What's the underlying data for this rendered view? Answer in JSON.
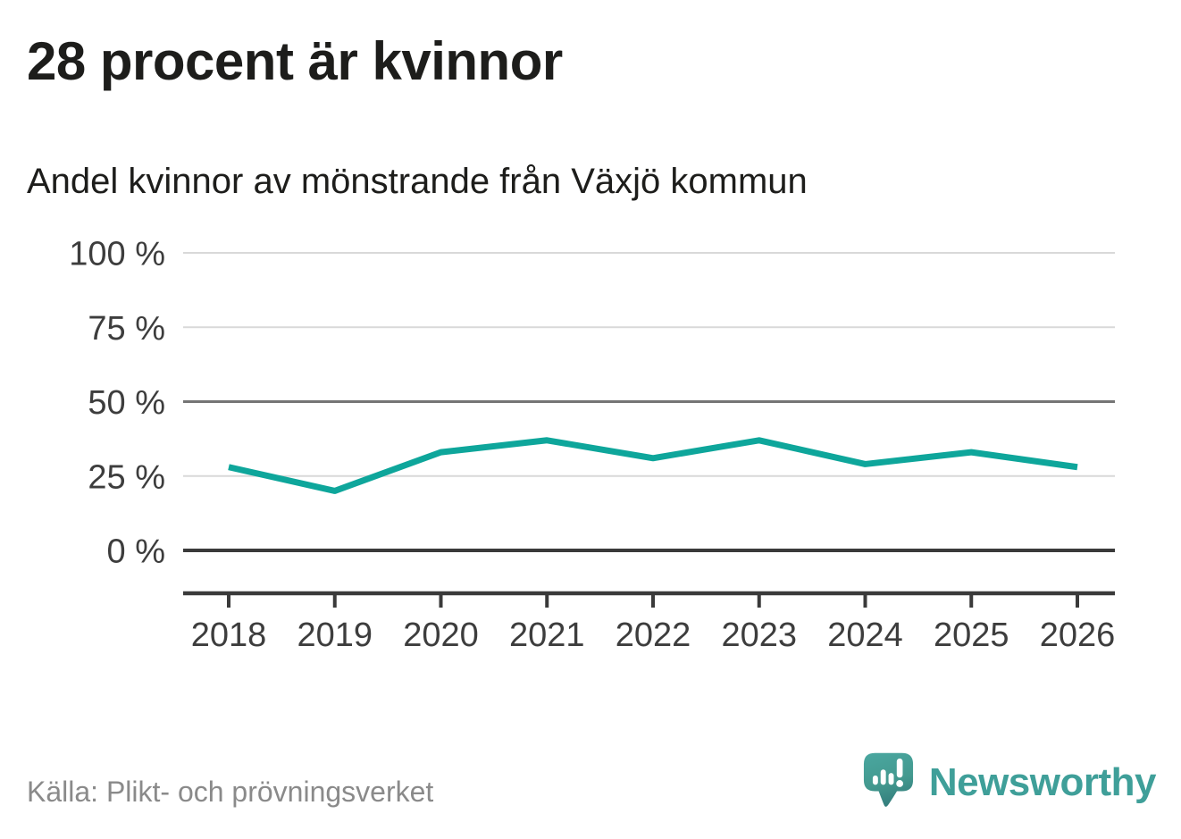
{
  "header": {
    "title": "28 procent är kvinnor",
    "subtitle": "Andel kvinnor av mönstrande från Växjö kommun"
  },
  "footer": {
    "source": "Källa: Plikt- och prövningsverket",
    "brand_name": "Newsworthy"
  },
  "colors": {
    "line": "#0ea69b",
    "grid_light": "#d9d9d9",
    "grid_mid": "#757575",
    "axis_dark": "#3a3a3a",
    "tick_text": "#3d3d3d",
    "title_text": "#1d1d1b",
    "source_text": "#8a8a8a",
    "brand_teal": "#3f9f99",
    "background": "#ffffff"
  },
  "chart_data": {
    "type": "line",
    "title": "28 procent är kvinnor",
    "subtitle": "Andel kvinnor av mönstrande från Växjö kommun",
    "x": [
      "2018",
      "2019",
      "2020",
      "2021",
      "2022",
      "2023",
      "2024",
      "2025",
      "2026"
    ],
    "series": [
      {
        "name": "Andel kvinnor av mönstrande",
        "color": "#0ea69b",
        "values": [
          28,
          20,
          33,
          37,
          31,
          37,
          29,
          33,
          28
        ]
      }
    ],
    "unit": "%",
    "ylim": [
      0,
      100
    ],
    "yticks": [
      0,
      25,
      50,
      75,
      100
    ],
    "ytick_format": "{v} %",
    "grid": "horizontal",
    "highlight_gridline": 50,
    "baseline": 0,
    "legend": "none"
  }
}
